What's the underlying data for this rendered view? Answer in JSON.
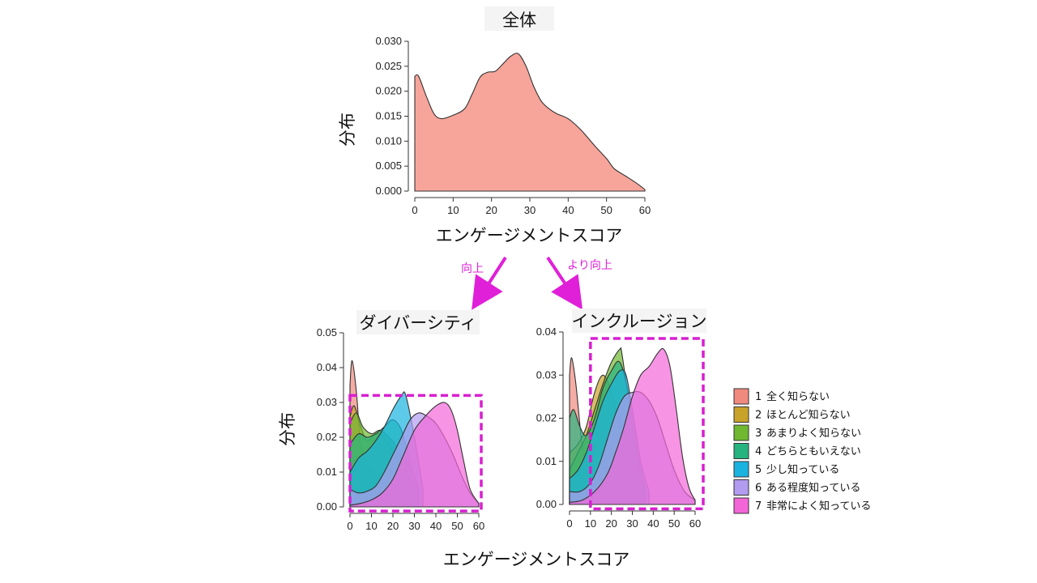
{
  "figure": {
    "xlabel_main": "エンゲージメントスコア",
    "xlabel_bottom": "エンゲージメントスコア",
    "ylabel": "分布",
    "arrow_left_label": "向上",
    "arrow_right_label": "より向上",
    "arrow_color": "#e020d8",
    "highlight_color": "#d81fd0"
  },
  "legend": {
    "items": [
      {
        "num": "1",
        "label": "全く知らない",
        "color": "#f08a7e"
      },
      {
        "num": "2",
        "label": "ほとんど知らない",
        "color": "#c9a22a"
      },
      {
        "num": "3",
        "label": "あまりよく知らない",
        "color": "#6fb830"
      },
      {
        "num": "4",
        "label": "どちらともいえない",
        "color": "#26b37f"
      },
      {
        "num": "5",
        "label": "少し知っている",
        "color": "#1ab3e0"
      },
      {
        "num": "6",
        "label": "ある程度知っている",
        "color": "#b19cf0"
      },
      {
        "num": "7",
        "label": "非常によく知っている",
        "color": "#f466d8"
      }
    ]
  },
  "chart_data": [
    {
      "type": "area",
      "title": "全体",
      "xlabel": "エンゲージメントスコア",
      "ylabel": "分布",
      "xlim": [
        0,
        60
      ],
      "ylim": [
        0,
        0.03
      ],
      "xticks": [
        "0",
        "10",
        "20",
        "30",
        "40",
        "50",
        "60"
      ],
      "yticks": [
        "0.000",
        "0.005",
        "0.010",
        "0.015",
        "0.020",
        "0.025",
        "0.030"
      ],
      "series": [
        {
          "color": "#f7a59b",
          "x": [
            0,
            1,
            3,
            5,
            7,
            10,
            13,
            15,
            17,
            19,
            21,
            23,
            25,
            27,
            29,
            31,
            33,
            35,
            37,
            40,
            43,
            45,
            47,
            50,
            52,
            55,
            58,
            60
          ],
          "y": [
            0.023,
            0.023,
            0.019,
            0.0155,
            0.0145,
            0.0152,
            0.0165,
            0.0195,
            0.0228,
            0.0238,
            0.024,
            0.0255,
            0.027,
            0.0275,
            0.025,
            0.021,
            0.018,
            0.0165,
            0.0155,
            0.0145,
            0.0125,
            0.0108,
            0.009,
            0.0065,
            0.0045,
            0.003,
            0.0015,
            0.0003
          ]
        }
      ]
    },
    {
      "type": "area",
      "title": "ダイバーシティ",
      "xlabel": "エンゲージメントスコア",
      "ylabel": "分布",
      "xlim": [
        0,
        60
      ],
      "ylim": [
        0,
        0.05
      ],
      "xticks": [
        "0",
        "10",
        "20",
        "30",
        "40",
        "50",
        "60"
      ],
      "yticks": [
        "0.00",
        "0.01",
        "0.02",
        "0.03",
        "0.04",
        "0.05"
      ],
      "series": [
        {
          "name": "1",
          "x": [
            0,
            1,
            3,
            5,
            8,
            12,
            15,
            20,
            25
          ],
          "y": [
            0.035,
            0.042,
            0.033,
            0.018,
            0.012,
            0.01,
            0.008,
            0.003,
            0.0005
          ]
        },
        {
          "name": "2",
          "x": [
            0,
            2,
            5,
            8,
            12,
            16,
            20,
            24,
            28
          ],
          "y": [
            0.026,
            0.029,
            0.023,
            0.019,
            0.021,
            0.02,
            0.016,
            0.01,
            0.004
          ]
        },
        {
          "name": "3",
          "x": [
            0,
            3,
            6,
            10,
            14,
            18,
            22,
            26,
            30
          ],
          "y": [
            0.024,
            0.027,
            0.023,
            0.021,
            0.022,
            0.02,
            0.017,
            0.011,
            0.004
          ]
        },
        {
          "name": "4",
          "x": [
            0,
            4,
            8,
            12,
            16,
            20,
            24,
            28,
            32
          ],
          "y": [
            0.018,
            0.021,
            0.02,
            0.021,
            0.023,
            0.025,
            0.022,
            0.013,
            0.005
          ]
        },
        {
          "name": "5",
          "x": [
            0,
            4,
            8,
            12,
            16,
            20,
            24,
            26,
            30,
            34
          ],
          "y": [
            0.01,
            0.014,
            0.016,
            0.019,
            0.023,
            0.028,
            0.032,
            0.032,
            0.02,
            0.005
          ]
        },
        {
          "name": "6",
          "x": [
            0,
            4,
            8,
            12,
            16,
            20,
            24,
            28,
            32,
            36,
            40,
            44,
            48,
            52,
            56,
            60
          ],
          "y": [
            0.005,
            0.004,
            0.0045,
            0.006,
            0.01,
            0.015,
            0.02,
            0.025,
            0.027,
            0.026,
            0.024,
            0.02,
            0.015,
            0.009,
            0.004,
            0.001
          ]
        },
        {
          "name": "7",
          "x": [
            0,
            5,
            10,
            15,
            20,
            25,
            30,
            35,
            40,
            44,
            47,
            50,
            53,
            56,
            60
          ],
          "y": [
            0.0005,
            0.001,
            0.002,
            0.004,
            0.008,
            0.015,
            0.022,
            0.026,
            0.029,
            0.03,
            0.028,
            0.022,
            0.013,
            0.005,
            0.001
          ]
        }
      ]
    },
    {
      "type": "area",
      "title": "インクルージョン",
      "xlabel": "エンゲージメントスコア",
      "ylabel": "分布",
      "xlim": [
        0,
        60
      ],
      "ylim": [
        0,
        0.04
      ],
      "xticks": [
        "0",
        "10",
        "20",
        "30",
        "40",
        "50",
        "60"
      ],
      "yticks": [
        "0.00",
        "0.01",
        "0.02",
        "0.03",
        "0.04"
      ],
      "series": [
        {
          "name": "1",
          "x": [
            0,
            1,
            3,
            6,
            9,
            12,
            16,
            20
          ],
          "y": [
            0.03,
            0.034,
            0.028,
            0.014,
            0.008,
            0.004,
            0.001,
            0.0003
          ]
        },
        {
          "name": "2",
          "x": [
            0,
            4,
            8,
            12,
            16,
            20,
            24,
            28,
            32
          ],
          "y": [
            0.012,
            0.014,
            0.018,
            0.026,
            0.03,
            0.026,
            0.018,
            0.008,
            0.002
          ]
        },
        {
          "name": "3",
          "x": [
            0,
            4,
            8,
            12,
            16,
            20,
            24,
            25,
            28,
            32,
            36
          ],
          "y": [
            0.008,
            0.012,
            0.016,
            0.022,
            0.028,
            0.033,
            0.036,
            0.035,
            0.025,
            0.012,
            0.003
          ]
        },
        {
          "name": "4",
          "x": [
            0,
            2,
            5,
            8,
            12,
            16,
            20,
            24,
            28,
            32,
            36
          ],
          "y": [
            0.02,
            0.022,
            0.018,
            0.016,
            0.02,
            0.027,
            0.031,
            0.033,
            0.026,
            0.013,
            0.004
          ]
        },
        {
          "name": "5",
          "x": [
            0,
            4,
            8,
            12,
            16,
            20,
            24,
            27,
            30,
            34,
            38
          ],
          "y": [
            0.006,
            0.008,
            0.012,
            0.018,
            0.024,
            0.028,
            0.031,
            0.03,
            0.022,
            0.01,
            0.003
          ]
        },
        {
          "name": "6",
          "x": [
            0,
            5,
            10,
            14,
            18,
            22,
            26,
            30,
            34,
            38,
            42,
            46,
            50,
            55,
            60
          ],
          "y": [
            0.003,
            0.003,
            0.005,
            0.009,
            0.015,
            0.021,
            0.025,
            0.026,
            0.026,
            0.024,
            0.02,
            0.014,
            0.008,
            0.003,
            0.001
          ]
        },
        {
          "name": "7",
          "x": [
            0,
            6,
            12,
            18,
            22,
            26,
            30,
            34,
            38,
            42,
            45,
            48,
            51,
            54,
            57,
            60
          ],
          "y": [
            0.0005,
            0.001,
            0.003,
            0.007,
            0.012,
            0.018,
            0.025,
            0.03,
            0.032,
            0.035,
            0.036,
            0.032,
            0.022,
            0.011,
            0.004,
            0.001
          ]
        }
      ]
    }
  ]
}
